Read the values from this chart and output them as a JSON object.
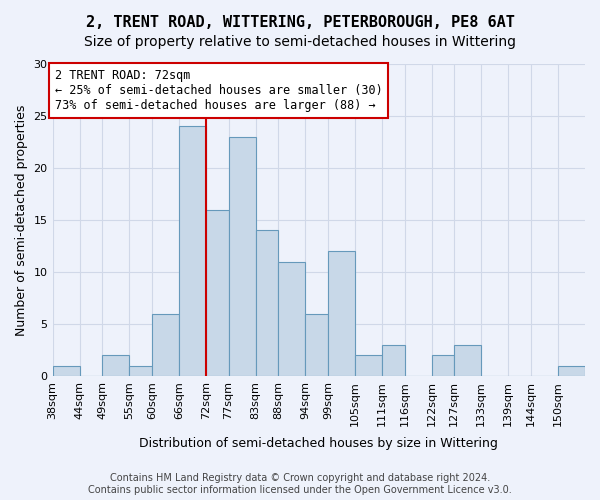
{
  "title": "2, TRENT ROAD, WITTERING, PETERBOROUGH, PE8 6AT",
  "subtitle": "Size of property relative to semi-detached houses in Wittering",
  "xlabel": "Distribution of semi-detached houses by size in Wittering",
  "ylabel": "Number of semi-detached properties",
  "tick_labels": [
    "38sqm",
    "44sqm",
    "49sqm",
    "55sqm",
    "60sqm",
    "66sqm",
    "72sqm",
    "77sqm",
    "83sqm",
    "88sqm",
    "94sqm",
    "99sqm",
    "105sqm",
    "111sqm",
    "116sqm",
    "122sqm",
    "127sqm",
    "133sqm",
    "139sqm",
    "144sqm",
    "150sqm"
  ],
  "bin_edges": [
    38,
    44,
    49,
    55,
    60,
    66,
    72,
    77,
    83,
    88,
    94,
    99,
    105,
    111,
    116,
    122,
    127,
    133,
    139,
    144,
    150,
    156
  ],
  "values": [
    1,
    0,
    2,
    1,
    6,
    24,
    16,
    23,
    14,
    11,
    6,
    12,
    2,
    3,
    0,
    2,
    3,
    0,
    0,
    0,
    1
  ],
  "bar_color": "#c8d8e8",
  "bar_edge_color": "#6699bb",
  "marker_value": 72,
  "marker_color": "#cc0000",
  "annotation_text": "2 TRENT ROAD: 72sqm\n← 25% of semi-detached houses are smaller (30)\n73% of semi-detached houses are larger (88) →",
  "annotation_box_color": "#ffffff",
  "annotation_box_edge_color": "#cc0000",
  "ylim": [
    0,
    30
  ],
  "yticks": [
    0,
    5,
    10,
    15,
    20,
    25,
    30
  ],
  "grid_color": "#d0d8e8",
  "background_color": "#eef2fb",
  "footer": "Contains HM Land Registry data © Crown copyright and database right 2024.\nContains public sector information licensed under the Open Government Licence v3.0.",
  "title_fontsize": 11,
  "subtitle_fontsize": 10,
  "xlabel_fontsize": 9,
  "ylabel_fontsize": 9,
  "tick_fontsize": 8,
  "annotation_fontsize": 8.5,
  "footer_fontsize": 7
}
